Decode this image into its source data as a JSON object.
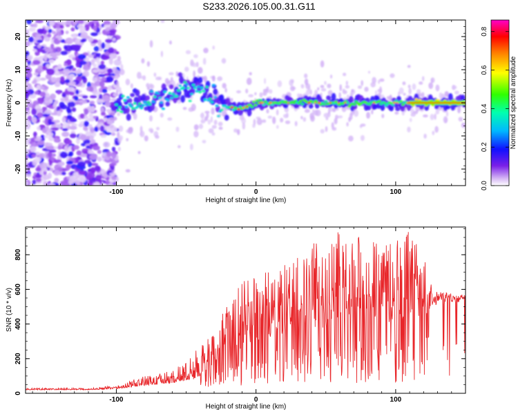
{
  "title": "S233.2026.105.00.31.G11",
  "chart_data": [
    {
      "type": "heatmap",
      "name": "spectrogram",
      "xlabel": "Height of straight line (km)",
      "ylabel": "Frequency (Hz)",
      "xlim": [
        -165,
        150
      ],
      "ylim": [
        -25,
        25
      ],
      "xticks": [
        -100,
        0,
        100
      ],
      "yticks": [
        -20,
        -10,
        0,
        10,
        20
      ],
      "colorbar": {
        "label": "Normalized spectral amplitude",
        "range": [
          0,
          0.86
        ],
        "ticks": [
          0.0,
          0.2,
          0.4,
          0.6,
          0.8
        ]
      },
      "trace_center_hz": [
        {
          "x": -100,
          "y": -2
        },
        {
          "x": -80,
          "y": 0
        },
        {
          "x": -60,
          "y": 3
        },
        {
          "x": -40,
          "y": 5
        },
        {
          "x": -28,
          "y": 0
        },
        {
          "x": -12,
          "y": -2
        },
        {
          "x": 0,
          "y": 0
        },
        {
          "x": 150,
          "y": 0
        }
      ]
    },
    {
      "type": "line",
      "name": "snr",
      "xlabel": "Height of straight line (km)",
      "ylabel": "SNR (10 * v/v)",
      "xlim": [
        -165,
        150
      ],
      "ylim": [
        0,
        960
      ],
      "xticks": [
        -100,
        0,
        100
      ],
      "yticks": [
        0,
        200,
        400,
        600,
        800
      ],
      "color": "#e8262a",
      "envelope": {
        "x": [
          -165,
          -120,
          -100,
          -80,
          -60,
          -45,
          -30,
          -10,
          10,
          30,
          50,
          70,
          90,
          110,
          130,
          150
        ],
        "base": [
          20,
          20,
          25,
          45,
          60,
          80,
          150,
          260,
          320,
          360,
          380,
          400,
          400,
          420,
          480,
          520
        ],
        "peak": [
          30,
          30,
          45,
          100,
          130,
          230,
          380,
          650,
          720,
          800,
          940,
          930,
          870,
          940,
          620,
          580
        ]
      }
    }
  ]
}
